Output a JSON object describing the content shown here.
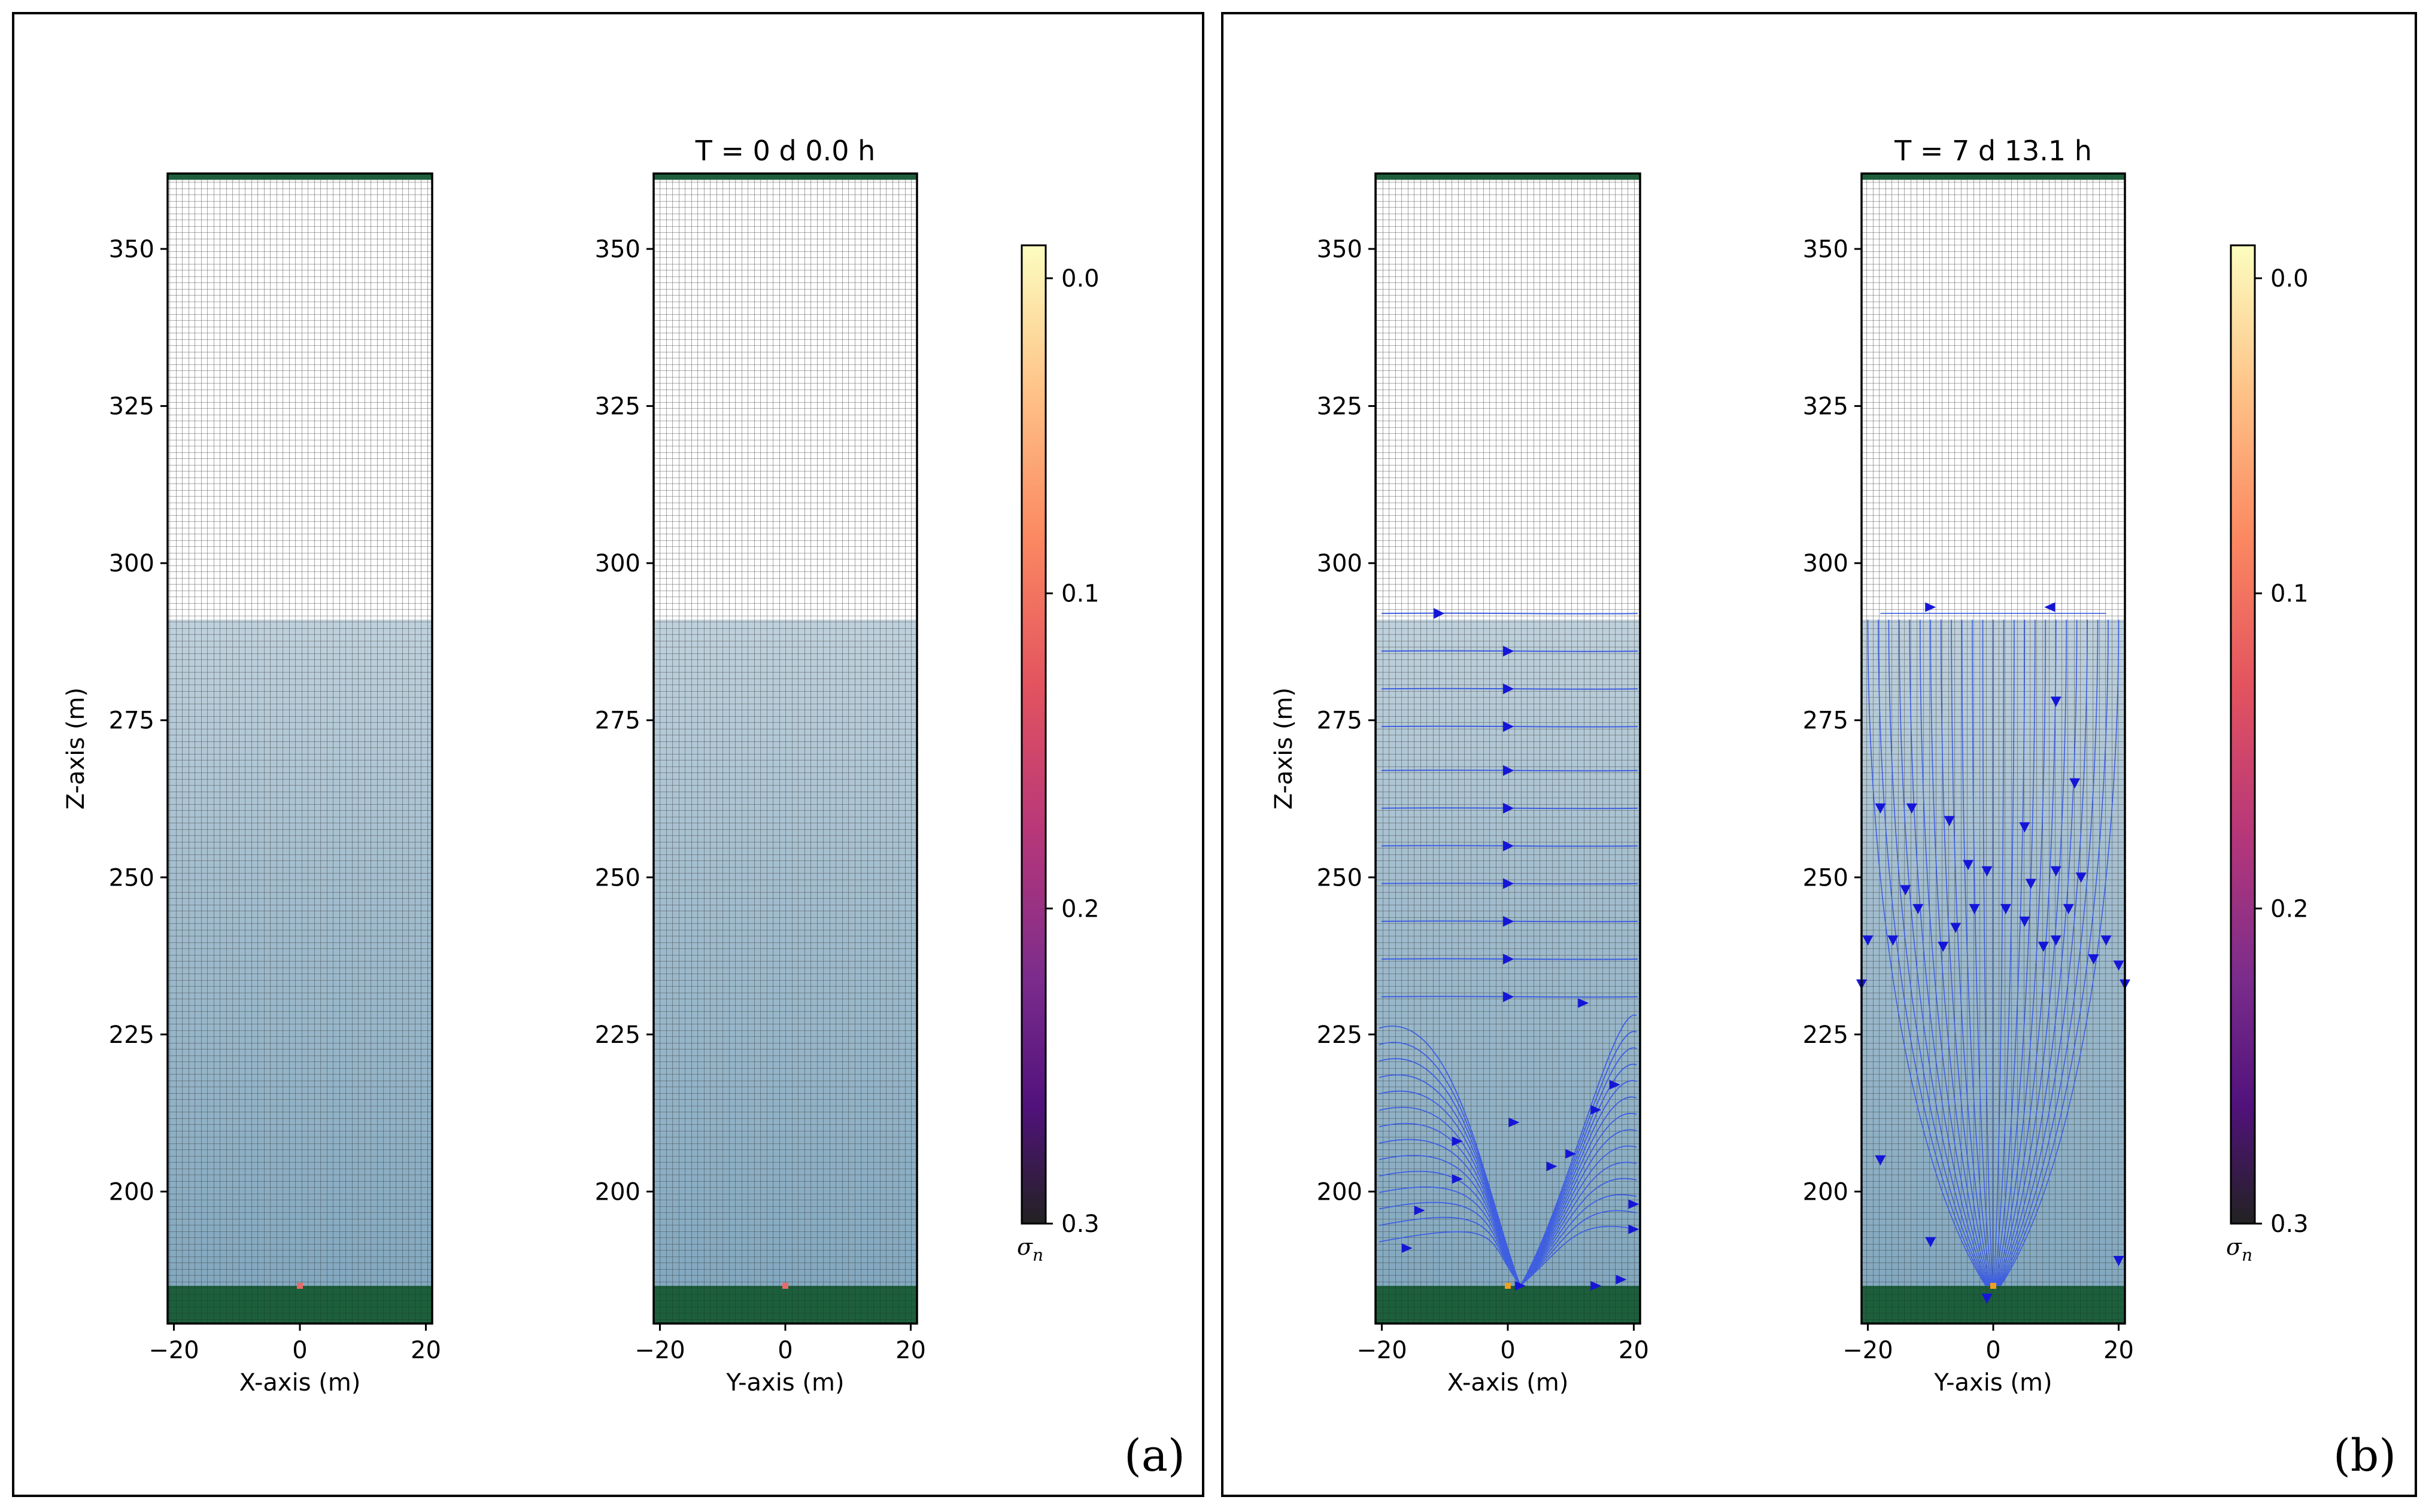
{
  "chart_data": [
    {
      "panel": "(a)",
      "type": "heatmap",
      "time_title": "T = 0 d  0.0 h",
      "colormap": "magma_r",
      "colorbar": {
        "label": "σ",
        "label_subscript": "n",
        "ticks": [
          0.0,
          0.1,
          0.2,
          0.3
        ],
        "tick_labels": [
          "0.0",
          "0.1",
          "0.2",
          "0.3"
        ],
        "range": [
          0.0,
          0.3
        ]
      },
      "water_table_z": 291,
      "top_boundary_z": 361,
      "bottom_boundary_z": [
        180,
        185
      ],
      "source_marker": {
        "x": 0,
        "z": 185
      },
      "subplots": [
        {
          "name": "xz",
          "xlabel": "X-axis (m)",
          "ylabel": "Z-axis (m)",
          "xlim": [
            -21,
            21
          ],
          "ylim": [
            179,
            362
          ],
          "xticks": [
            -20,
            0,
            20
          ],
          "xtick_labels": [
            "−20",
            "0",
            "20"
          ],
          "yticks": [
            200,
            225,
            250,
            275,
            300,
            325,
            350
          ],
          "ytick_labels": [
            "200",
            "225",
            "250",
            "275",
            "300",
            "325",
            "350"
          ],
          "title": "",
          "streamlines": "none"
        },
        {
          "name": "yz",
          "xlabel": "Y-axis (m)",
          "ylabel": "",
          "xlim": [
            -21,
            21
          ],
          "ylim": [
            179,
            362
          ],
          "xticks": [
            -20,
            0,
            20
          ],
          "xtick_labels": [
            "−20",
            "0",
            "20"
          ],
          "yticks": [
            200,
            225,
            250,
            275,
            300,
            325,
            350
          ],
          "ytick_labels": [
            "200",
            "225",
            "250",
            "275",
            "300",
            "325",
            "350"
          ],
          "title": "T = 0 d  0.0 h",
          "streamlines": "none"
        }
      ]
    },
    {
      "panel": "(b)",
      "type": "heatmap",
      "time_title": "T = 7 d 13.1 h",
      "colormap": "magma_r",
      "colorbar": {
        "label": "σ",
        "label_subscript": "n",
        "ticks": [
          0.0,
          0.1,
          0.2,
          0.3
        ],
        "tick_labels": [
          "0.0",
          "0.1",
          "0.2",
          "0.3"
        ],
        "range": [
          0.0,
          0.3
        ]
      },
      "water_table_z": 291,
      "top_boundary_z": 361,
      "bottom_boundary_z": [
        180,
        185
      ],
      "source_marker": {
        "x": 0,
        "z": 185
      },
      "subplots": [
        {
          "name": "xz",
          "xlabel": "X-axis (m)",
          "ylabel": "Z-axis (m)",
          "xlim": [
            -21,
            21
          ],
          "ylim": [
            179,
            362
          ],
          "xticks": [
            -20,
            0,
            20
          ],
          "xtick_labels": [
            "−20",
            "0",
            "20"
          ],
          "yticks": [
            200,
            225,
            250,
            275,
            300,
            325,
            350
          ],
          "ytick_labels": [
            "200",
            "225",
            "250",
            "275",
            "300",
            "325",
            "350"
          ],
          "title": "",
          "streamlines": "lateral"
        },
        {
          "name": "yz",
          "xlabel": "Y-axis (m)",
          "ylabel": "",
          "xlim": [
            -21,
            21
          ],
          "ylim": [
            179,
            362
          ],
          "xticks": [
            -20,
            0,
            20
          ],
          "xtick_labels": [
            "−20",
            "0",
            "20"
          ],
          "yticks": [
            200,
            225,
            250,
            275,
            300,
            325,
            350
          ],
          "ytick_labels": [
            "200",
            "225",
            "250",
            "275",
            "300",
            "325",
            "350"
          ],
          "title": "T = 7 d 13.1 h",
          "streamlines": "converging"
        }
      ]
    }
  ],
  "colors": {
    "grid_line": "#3a3a3a",
    "saturated_fill": "#7fa6be",
    "saturated_fill_top": "#b8ccd8",
    "boundary_green": "#1d5f3c",
    "streamline": "#3f5fe0",
    "arrow": "#1515d8",
    "source_marker": "#f0a020",
    "source_marker_a": "#e86a6a"
  },
  "panel_labels": [
    "(a)",
    "(b)"
  ]
}
